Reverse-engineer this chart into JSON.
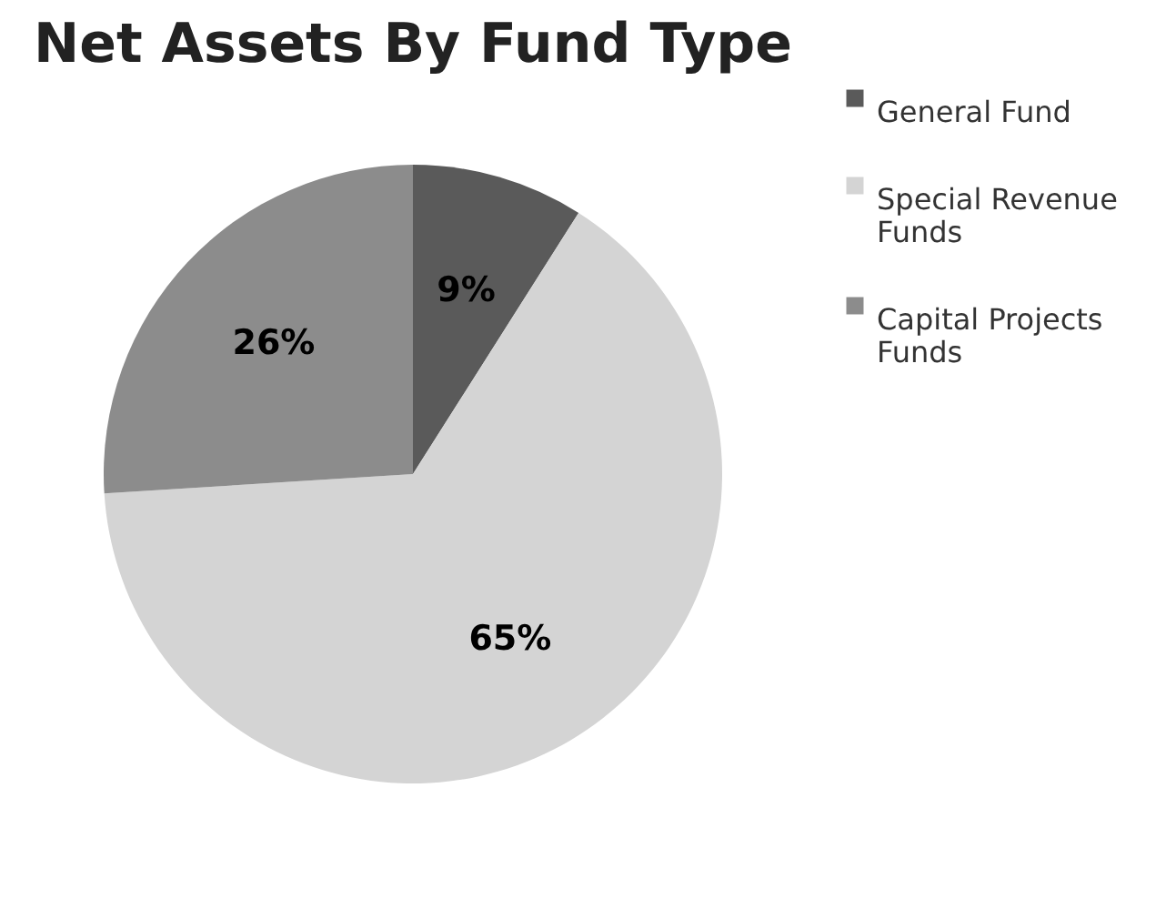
{
  "chart_data": {
    "type": "pie",
    "title": "Net Assets By Fund Type",
    "categories": [
      "General Fund",
      "Special Revenue Funds",
      "Capital Projects Funds"
    ],
    "values": [
      9,
      65,
      26
    ],
    "value_labels": [
      "9%",
      "65%",
      "26%"
    ],
    "colors": [
      "#5a5a5a",
      "#d4d4d4",
      "#8c8c8c"
    ],
    "legend": "right"
  }
}
